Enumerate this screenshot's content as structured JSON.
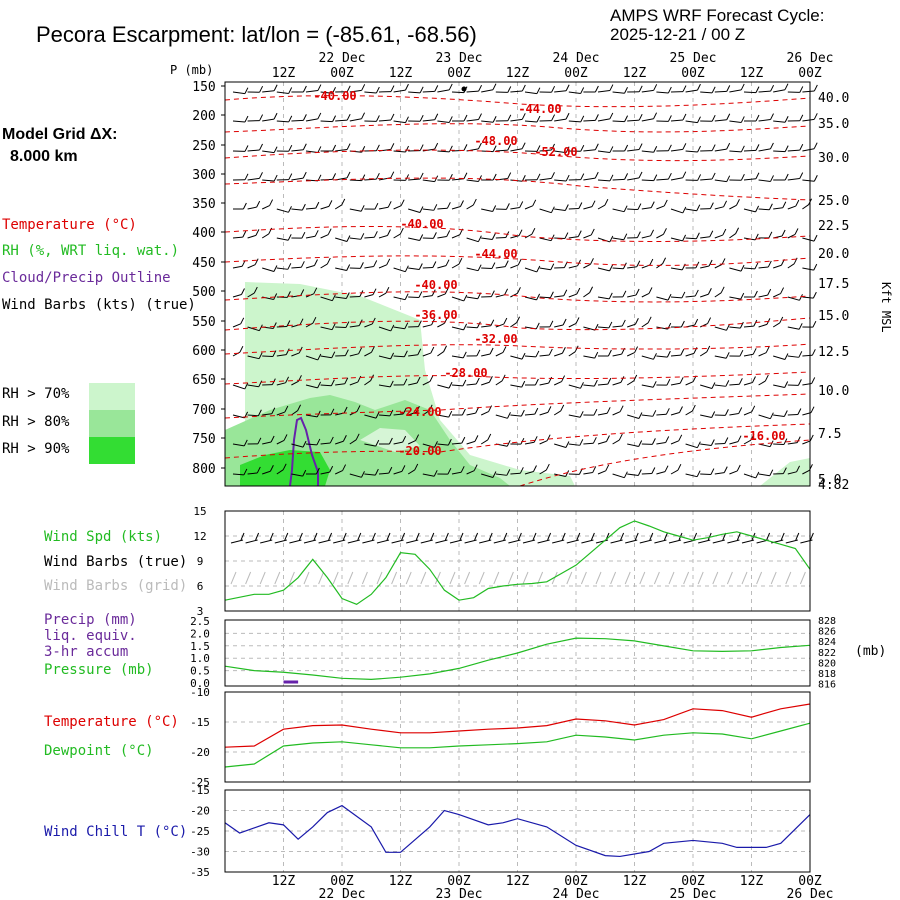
{
  "header": {
    "title": "Pecora Escarpment:  lat/lon = (-85.61, -68.56)",
    "cycle_line1": "AMPS WRF Forecast Cycle:",
    "cycle_line2": "2025-12-21 / 00  Z"
  },
  "model_grid": {
    "line1": "Model Grid ΔX:",
    "line2": "8.000 km"
  },
  "legend": {
    "temperature": "Temperature (°C)",
    "rh": "RH (%, WRT liq. wat.)",
    "cloud": "Cloud/Precip Outline",
    "wind_barbs": "Wind Barbs (kts) (true)",
    "rh_bins": [
      "RH > 70%",
      "RH > 80%",
      "RH > 90%"
    ]
  },
  "time_axis": {
    "top_hours": [
      "12Z",
      "00Z",
      "12Z",
      "00Z",
      "12Z",
      "00Z",
      "12Z",
      "00Z",
      "12Z",
      "00Z"
    ],
    "bottom_hours": [
      "12Z",
      "00Z",
      "12Z",
      "00Z",
      "12Z",
      "00Z",
      "12Z",
      "00Z",
      "12Z",
      "00Z"
    ],
    "dates": [
      "22 Dec",
      "23 Dec",
      "24 Dec",
      "25 Dec",
      "26 Dec"
    ]
  },
  "colors": {
    "temp": "#dd0000",
    "rh70": "#ccf5cc",
    "rh80": "#99e699",
    "rh90": "#33dd33",
    "cloud": "#6622aa",
    "wind": "#22bb22",
    "dew": "#22bb22",
    "chill": "#1a1aaa",
    "precip_text": "#6a2a9a",
    "grid": "#bbbbbb"
  },
  "chart_data": [
    {
      "type": "heatmap",
      "title": "Vertical cross-section",
      "y_axis_label": "P (mb)",
      "pressure_ticks": [
        "150",
        "200",
        "250",
        "300",
        "350",
        "400",
        "450",
        "500",
        "550",
        "600",
        "650",
        "700",
        "750",
        "800"
      ],
      "right_axis_label": "Kft MSL",
      "height_ticks": [
        "40.0",
        "35.0",
        "30.0",
        "25.0",
        "22.5",
        "20.0",
        "17.5",
        "15.0",
        "12.5",
        "10.0",
        "7.5",
        "5.0",
        "4.82"
      ],
      "temperature_contours": [
        {
          "label": "-40.00"
        },
        {
          "label": "-44.00"
        },
        {
          "label": "-48.00"
        },
        {
          "label": "-52.00"
        },
        {
          "label": "-40.00"
        },
        {
          "label": "-44.00"
        },
        {
          "label": "-40.00"
        },
        {
          "label": "-36.00"
        },
        {
          "label": "-32.00"
        },
        {
          "label": "-28.00"
        },
        {
          "label": "-24.00"
        },
        {
          "label": "-20.00"
        },
        {
          "label": "-16.00"
        }
      ],
      "x_range_hours": [
        0,
        120
      ]
    },
    {
      "type": "line",
      "title": "Wind speed",
      "series_label": "Wind Spd (kts)",
      "barb_label_true": "Wind Barbs (true)",
      "barb_label_grid": "Wind Barbs (grid)",
      "y_ticks": [
        "15",
        "12",
        "9",
        "6",
        "3"
      ],
      "ylim": [
        3,
        15
      ],
      "x_hours": [
        0,
        6,
        9,
        12,
        15,
        18,
        21,
        24,
        27,
        30,
        33,
        36,
        39,
        42,
        45,
        48,
        51,
        54,
        57,
        60,
        63,
        66,
        69,
        72,
        75,
        78,
        81,
        84,
        87,
        90,
        93,
        96,
        99,
        102,
        105,
        108,
        111,
        114,
        117,
        120
      ],
      "values": [
        4.3,
        5,
        5,
        5.5,
        7,
        9.2,
        7,
        4.5,
        3.8,
        5,
        7,
        10,
        9.8,
        8,
        5.5,
        4.3,
        4.6,
        5.7,
        6,
        6.2,
        6.3,
        6.5,
        7.5,
        8.5,
        10,
        11.5,
        13,
        13.8,
        13.2,
        12.5,
        12,
        11.5,
        11.8,
        12.2,
        12.5,
        12,
        11.5,
        11,
        10.5,
        8
      ]
    },
    {
      "type": "line",
      "title": "Precipitation and pressure",
      "precip_label": "Precip (mm)",
      "precip_sub1": "liq. equiv.",
      "precip_sub2": "3-hr accum",
      "pressure_label": "Pressure (mb)",
      "y_left_ticks": [
        "2.5",
        "2.0",
        "1.5",
        "1.0",
        "0.5",
        "0.0"
      ],
      "y_right_ticks": [
        "828",
        "826",
        "824",
        "822",
        "820",
        "818",
        "816"
      ],
      "right_unit": "(mb)",
      "pressure_ylim": [
        816,
        828
      ],
      "x_hours": [
        0,
        6,
        12,
        18,
        24,
        30,
        36,
        42,
        48,
        54,
        60,
        66,
        72,
        78,
        84,
        90,
        96,
        102,
        108,
        114,
        120
      ],
      "pressure": [
        819.6,
        818.8,
        818.5,
        818,
        817.4,
        817.2,
        817.6,
        818.2,
        819.2,
        820.7,
        822,
        823.6,
        824.7,
        824.6,
        824.2,
        823.3,
        822.4,
        822.3,
        822.4,
        823.0,
        823.4
      ],
      "precip_hours": [
        12,
        15
      ],
      "precip_values": [
        0.05,
        0.05
      ]
    },
    {
      "type": "line",
      "title": "Temperature and dewpoint",
      "temp_label": "Temperature (°C)",
      "dew_label": "Dewpoint (°C)",
      "y_ticks": [
        "-10",
        "-15",
        "-20",
        "-25"
      ],
      "ylim": [
        -25,
        -10
      ],
      "x_hours": [
        0,
        6,
        12,
        18,
        24,
        30,
        36,
        42,
        48,
        54,
        60,
        66,
        72,
        78,
        84,
        90,
        96,
        102,
        108,
        114,
        120
      ],
      "temperature": [
        -19.2,
        -19,
        -16.2,
        -15.6,
        -15.5,
        -16.2,
        -16.8,
        -16.8,
        -16.5,
        -16.2,
        -16.0,
        -15.6,
        -14.5,
        -14.8,
        -15.5,
        -14.6,
        -12.8,
        -13.1,
        -14.2,
        -12.8,
        -12.0
      ],
      "dewpoint": [
        -22.5,
        -22,
        -19,
        -18.5,
        -18.3,
        -18.8,
        -19.3,
        -19.3,
        -19,
        -18.8,
        -18.6,
        -18.3,
        -17.2,
        -17.5,
        -18,
        -17.2,
        -16.8,
        -17,
        -17.8,
        -16.5,
        -15.2
      ]
    },
    {
      "type": "line",
      "title": "Wind chill",
      "series_label": "Wind Chill T (°C)",
      "y_ticks": [
        "-15",
        "-20",
        "-25",
        "-30",
        "-35"
      ],
      "ylim": [
        -35,
        -15
      ],
      "x_hours": [
        0,
        3,
        9,
        12,
        15,
        18,
        21,
        24,
        30,
        33,
        36,
        42,
        45,
        48,
        54,
        57,
        60,
        66,
        72,
        78,
        81,
        87,
        90,
        96,
        102,
        105,
        111,
        114,
        120
      ],
      "values": [
        -23,
        -25.5,
        -23,
        -23.5,
        -27,
        -24,
        -20.5,
        -18.8,
        -24,
        -30.2,
        -30.2,
        -24,
        -20,
        -21,
        -23.5,
        -23,
        -22,
        -24,
        -28.5,
        -31,
        -31.2,
        -30,
        -28,
        -27.3,
        -28,
        -29,
        -29,
        -28,
        -21
      ]
    }
  ]
}
